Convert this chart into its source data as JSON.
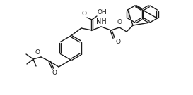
{
  "bg_color": "#ffffff",
  "line_color": "#1a1a1a",
  "lw": 1.0,
  "figsize": [
    2.73,
    1.35
  ],
  "dpi": 100,
  "xlim": [
    0,
    273
  ],
  "ylim": [
    0,
    135
  ]
}
